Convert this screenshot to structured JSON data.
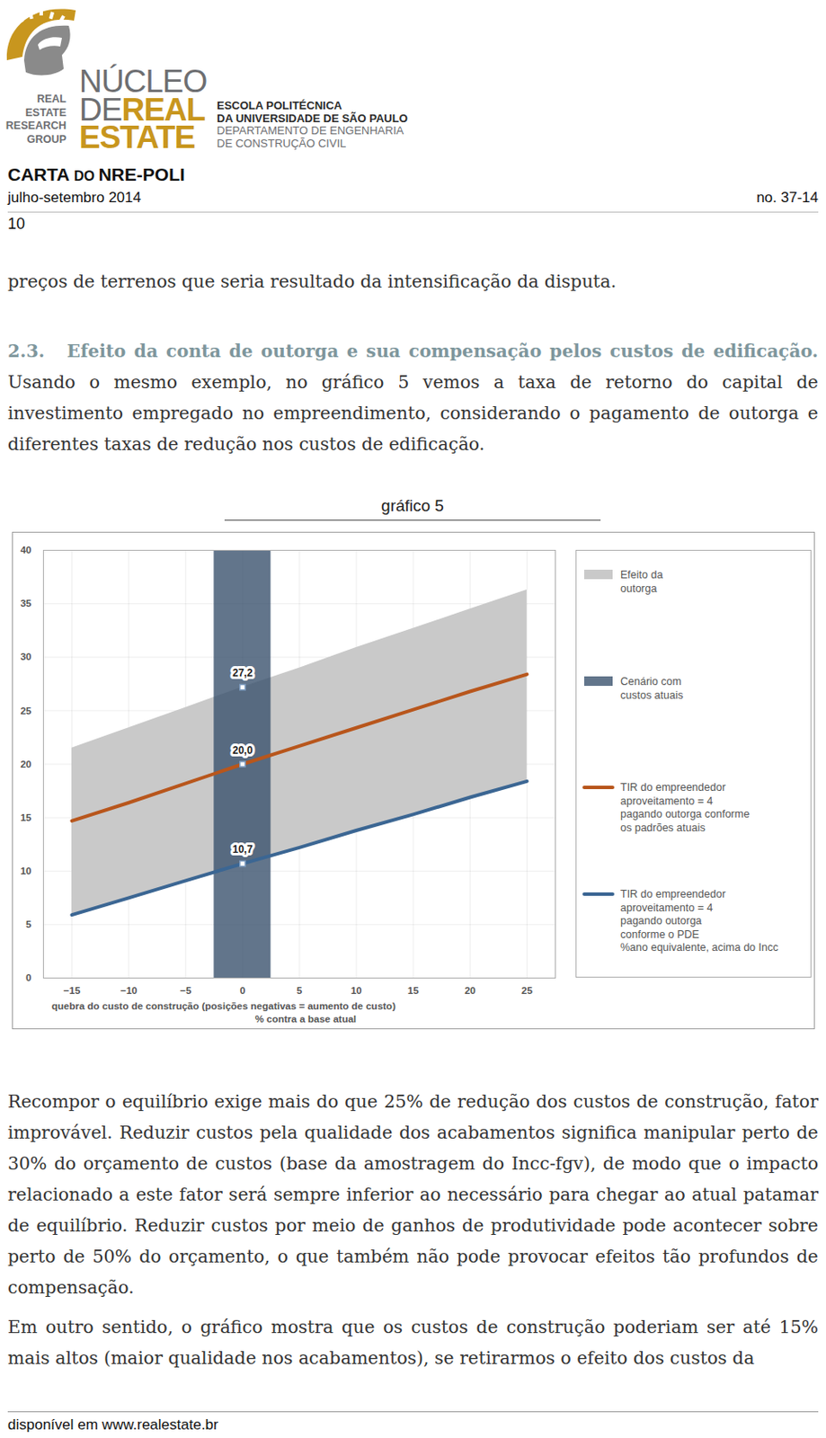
{
  "document": {
    "header": {
      "logo": {
        "group": [
          "REAL",
          "ESTATE",
          "RESEARCH",
          "GROUP"
        ],
        "name": [
          "NÚCLEO",
          "DE",
          "REAL",
          "ESTATE"
        ],
        "school": [
          "ESCOLA POLITÉCNICA",
          "DA UNIVERSIDADE DE SÃO PAULO"
        ],
        "department": [
          "DEPARTAMENTO DE ENGENHARIA",
          "DE CONSTRUÇÃO CIVIL"
        ]
      },
      "title": "CARTA DO NRE-POLI",
      "period": "julho-setembro 2014",
      "issue": "no. 37-14",
      "page": "10"
    },
    "paragraphs_before": [
      {
        "text": "preços de terrenos que seria resultado da intensificação da disputa."
      },
      {
        "number": "2.3.",
        "heading": "Efeito da conta de outorga e sua compensação pelos custos de edificação.",
        "text": "Usando o mesmo exemplo, no gráfico 5 vemos a taxa de retorno do capital de investimento empregado no empreendimento, considerando o pagamento de outorga e diferentes taxas de redução nos custos de edificação."
      }
    ],
    "paragraphs_after": [
      {
        "text": "Recompor o equilíbrio exige mais do que 25% de redução dos custos de construção, fator improvável. Reduzir custos pela qualidade dos acabamentos significa manipular perto de 30% do orçamento de custos (base da amostragem do Incc-fgv), de modo que o impacto relacionado a este fator será sempre inferior ao necessário para chegar ao atual patamar de equilíbrio. Reduzir custos por meio de ganhos de produtividade pode acontecer sobre perto de 50% do orçamento, o que também não pode provocar efeitos tão profundos de compensação."
      },
      {
        "text": "Em outro sentido, o gráfico mostra que os custos de construção poderiam ser até 15% mais altos (maior qualidade nos acabamentos), se retirarmos o efeito dos custos da"
      }
    ],
    "footer": "disponível em www.realestate.br"
  },
  "chart_data": {
    "type": "line",
    "title": "gráfico 5",
    "x_label": "quebra do custo de construção (posições negativas = aumento de custo)\n% contra a base atual",
    "x": [
      -15,
      -10,
      -5,
      0,
      5,
      10,
      15,
      20,
      25
    ],
    "area": {
      "name": "Efeito da\noutorga",
      "color": "#c9c9c9",
      "upper": [
        21.5,
        23.4,
        25.3,
        27.2,
        29.0,
        30.9,
        32.7,
        34.5,
        36.3
      ],
      "lower": [
        5.9,
        7.5,
        9.1,
        10.7,
        12.2,
        13.8,
        15.3,
        16.9,
        18.4
      ]
    },
    "band": {
      "name": "Cenário com\ncustos atuais",
      "color": "#3b536e",
      "x1": -2.5,
      "x2": 2.5
    },
    "series": [
      {
        "name": "TIR do empreendedor\naproveitamento = 4\npagando outorga conforme\nos padrões atuais",
        "color": "#b8561c",
        "values": [
          14.7,
          16.4,
          18.2,
          20.0,
          21.7,
          23.4,
          25.1,
          26.8,
          28.4
        ]
      },
      {
        "name": "TIR do empreendedor\naproveitamento = 4\npagando outorga\nconforme o PDE\n%ano equivalente, acima do Incc",
        "color": "#3b6693",
        "values": [
          5.9,
          7.5,
          9.1,
          10.7,
          12.2,
          13.8,
          15.3,
          16.9,
          18.4
        ]
      }
    ],
    "annotations": [
      {
        "x": 0,
        "value": 27.2,
        "label": "27,2"
      },
      {
        "x": 0,
        "value": 20.0,
        "label": "20,0"
      },
      {
        "x": 0,
        "value": 10.7,
        "label": "10,7"
      }
    ],
    "xlim": [
      -17.5,
      27.5
    ],
    "xticks": [
      -15,
      -10,
      -5,
      0,
      5,
      10,
      15,
      20,
      25
    ],
    "ylim": [
      0,
      40
    ],
    "yticks": [
      0,
      5,
      10,
      15,
      20,
      25,
      30,
      35,
      40
    ],
    "grid": true,
    "legend": "right"
  }
}
